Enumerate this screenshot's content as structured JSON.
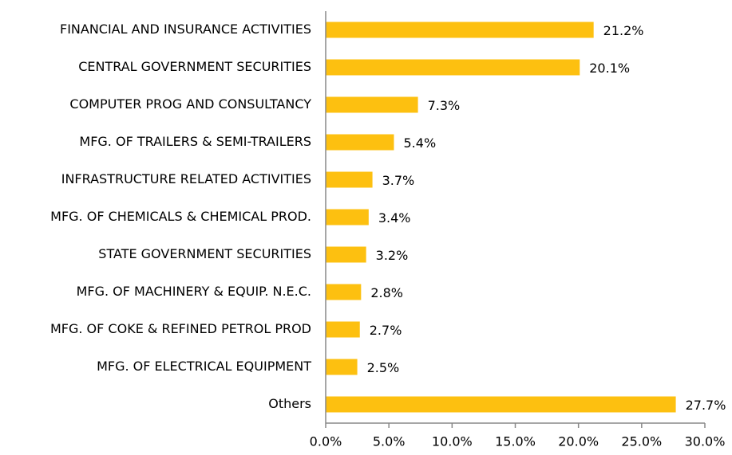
{
  "chart_data": {
    "type": "bar",
    "orientation": "horizontal",
    "categories": [
      "FINANCIAL AND INSURANCE ACTIVITIES",
      "CENTRAL GOVERNMENT SECURITIES",
      "COMPUTER PROG AND CONSULTANCY",
      "MFG. OF TRAILERS & SEMI-TRAILERS",
      "INFRASTRUCTURE RELATED ACTIVITIES",
      "MFG. OF CHEMICALS & CHEMICAL PROD.",
      "STATE GOVERNMENT SECURITIES",
      "MFG. OF MACHINERY & EQUIP. N.E.C.",
      "MFG. OF COKE & REFINED PETROL PROD",
      "MFG. OF ELECTRICAL EQUIPMENT",
      "Others"
    ],
    "values": [
      21.2,
      20.1,
      7.3,
      5.4,
      3.7,
      3.4,
      3.2,
      2.8,
      2.7,
      2.5,
      27.7
    ],
    "value_labels": [
      "21.2%",
      "20.1%",
      "7.3%",
      "5.4%",
      "3.7%",
      "3.4%",
      "3.2%",
      "2.8%",
      "2.7%",
      "2.5%",
      "27.7%"
    ],
    "color": "#fdc010",
    "xlim": [
      0,
      30
    ],
    "xticks": [
      {
        "value": 0,
        "label": "0.0%"
      },
      {
        "value": 5,
        "label": "5.0%"
      },
      {
        "value": 10,
        "label": "10.0%"
      },
      {
        "value": 15,
        "label": "15.0%"
      },
      {
        "value": 20,
        "label": "20.0%"
      },
      {
        "value": 25,
        "label": "25.0%"
      },
      {
        "value": 30,
        "label": "30.0%"
      }
    ],
    "grid": false
  }
}
